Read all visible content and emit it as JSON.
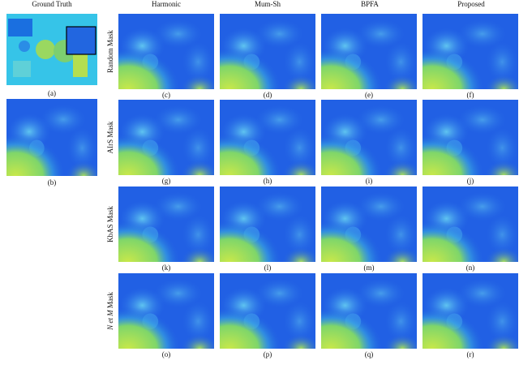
{
  "columns": [
    "Ground Truth",
    "Harmonic",
    "Mum-Sh",
    "BPFA",
    "Proposed"
  ],
  "ground_truth": {
    "panels": [
      "(a)",
      "(b)"
    ]
  },
  "rows": [
    {
      "label": "Random Mask",
      "panels": [
        "(c)",
        "(d)",
        "(e)",
        "(f)"
      ]
    },
    {
      "label": "AIrS Mask",
      "panels": [
        "(g)",
        "(h)",
        "(i)",
        "(j)"
      ]
    },
    {
      "label": "KbAS Mask",
      "panels": [
        "(k)",
        "(l)",
        "(m)",
        "(n)"
      ]
    },
    {
      "label_italic": "N et M",
      "label": "Mask",
      "panels": [
        "(o)",
        "(p)",
        "(q)",
        "(r)"
      ]
    }
  ]
}
